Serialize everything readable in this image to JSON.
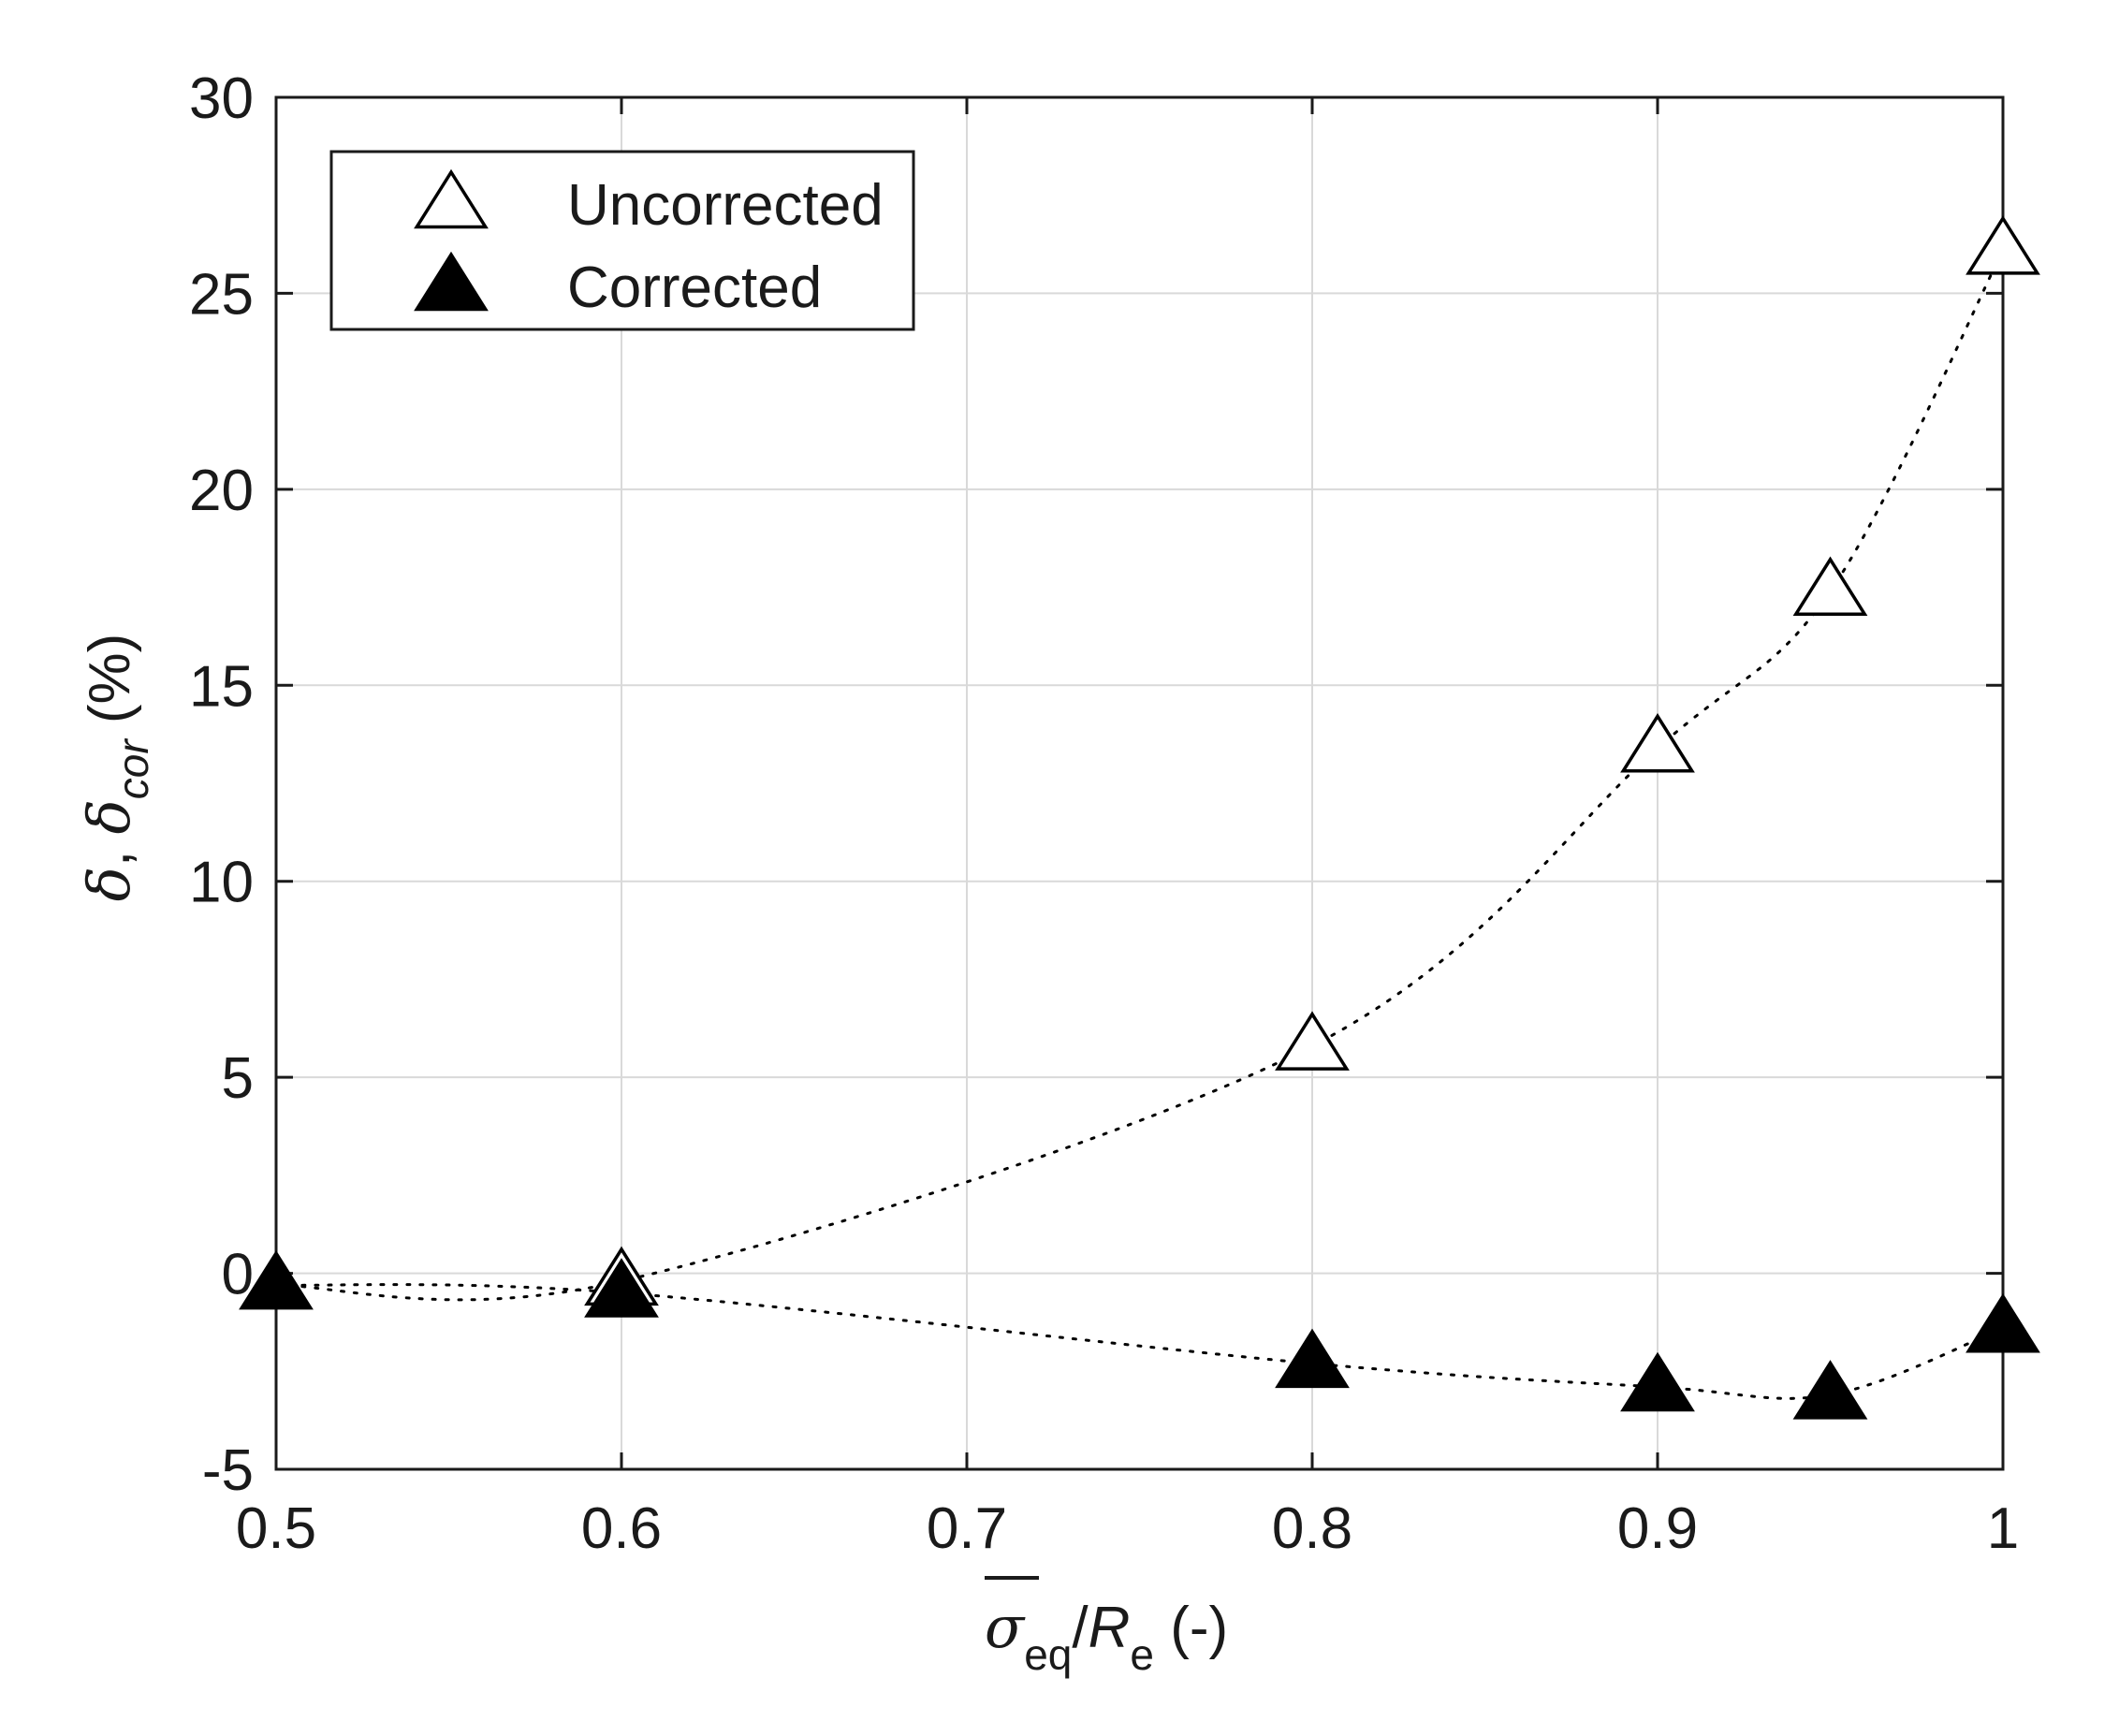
{
  "chart_data": {
    "type": "scatter",
    "x_axis": {
      "label_parts": [
        "σ",
        "eq",
        "/",
        "R",
        "e",
        " (-)"
      ],
      "lim": [
        0.5,
        1.0
      ],
      "ticks": [
        0.5,
        0.6,
        0.7,
        0.8,
        0.9,
        1.0
      ],
      "tick_labels": [
        "0.5",
        "0.6",
        "0.7",
        "0.8",
        "0.9",
        "1"
      ]
    },
    "y_axis": {
      "label_parts": [
        "δ",
        ", ",
        "δ",
        "cor",
        " (%)"
      ],
      "lim": [
        -5,
        30
      ],
      "ticks": [
        -5,
        0,
        5,
        10,
        15,
        20,
        25,
        30
      ],
      "tick_labels": [
        "-5",
        "0",
        "5",
        "10",
        "15",
        "20",
        "25",
        "30"
      ]
    },
    "grid": true,
    "legend_position": "top-left",
    "series": [
      {
        "name": "Uncorrected",
        "marker": "open-triangle",
        "x": [
          0.6,
          0.8,
          0.9,
          0.95,
          1.0
        ],
        "y": [
          -0.2,
          5.8,
          13.4,
          17.4,
          26.1
        ]
      },
      {
        "name": "Corrected",
        "marker": "filled-triangle",
        "x": [
          0.5,
          0.6,
          0.8,
          0.9,
          0.95,
          1.0
        ],
        "y": [
          -0.3,
          -0.5,
          -2.3,
          -2.9,
          -3.1,
          -1.4
        ]
      }
    ],
    "colors": {
      "axis": "#1a1a1a",
      "grid": "#d9d9d9",
      "marker": "#000000"
    }
  }
}
